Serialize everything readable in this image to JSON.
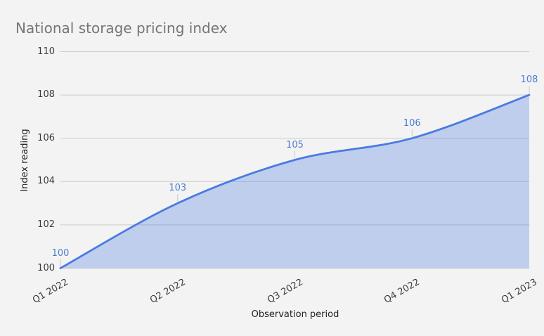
{
  "page": {
    "background": "#f3f3f3"
  },
  "chart_data": {
    "type": "area",
    "title": "National storage pricing index",
    "xlabel": "Observation period",
    "ylabel": "Index reading",
    "categories": [
      "Q1 2022",
      "Q2 2022",
      "Q3 2022",
      "Q4 2022",
      "Q1 2023"
    ],
    "values": [
      100,
      103,
      105,
      106,
      108
    ],
    "annotations": [
      "100",
      "103",
      "105",
      "106",
      "108"
    ],
    "ylim": [
      100,
      110
    ],
    "yticks": [
      100,
      102,
      104,
      106,
      108,
      110
    ],
    "grid": true,
    "legend": "none",
    "smooth": true,
    "colors": {
      "background": "#f3f3f3",
      "title_text": "#757575",
      "axis_tick_text": "#3c3c3c",
      "axis_title_text": "#1f1f1f",
      "gridline": "#cccccc",
      "series": "#4a7be0",
      "fill_opacity": 0.3,
      "annotation_text": "#4d7bd2",
      "annotation_stem": "#c9c9c9"
    }
  }
}
